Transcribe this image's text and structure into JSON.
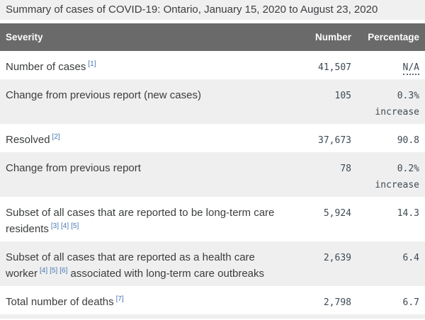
{
  "title": "Summary of cases of COVID-19: Ontario, January 15, 2020 to August 23, 2020",
  "table": {
    "columns": [
      "Severity",
      "Number",
      "Percentage"
    ],
    "rows": [
      {
        "label_segments": [
          {
            "text": "Number of cases"
          },
          {
            "sup": "[1]"
          }
        ],
        "number": "41,507",
        "pct": "N/A",
        "pct_na": true
      },
      {
        "label_segments": [
          {
            "text": "Change from previous report (new cases)"
          }
        ],
        "number": "105",
        "pct": "0.3%",
        "pct_note": "increase"
      },
      {
        "label_segments": [
          {
            "text": "Resolved"
          },
          {
            "sup": "[2]"
          }
        ],
        "number": "37,673",
        "pct": "90.8"
      },
      {
        "label_segments": [
          {
            "text": "Change from previous report"
          }
        ],
        "number": "78",
        "pct": "0.2%",
        "pct_note": "increase"
      },
      {
        "label_segments": [
          {
            "text": "Subset of all cases that are reported to be long-term care residents"
          },
          {
            "sup": "[3]"
          },
          {
            "sup": "[4]"
          },
          {
            "sup": "[5]"
          }
        ],
        "number": "5,924",
        "pct": "14.3"
      },
      {
        "label_segments": [
          {
            "text": "Subset of all cases that are reported as a health care worker"
          },
          {
            "sup": "[4]"
          },
          {
            "sup": "[5]"
          },
          {
            "sup": "[6]"
          },
          {
            "text": " associated with long-term care outbreaks"
          }
        ],
        "number": "2,639",
        "pct": "6.4"
      },
      {
        "label_segments": [
          {
            "text": "Total number of deaths"
          },
          {
            "sup": "[7]"
          }
        ],
        "number": "2,798",
        "pct": "6.7"
      }
    ]
  },
  "chart_data": {
    "type": "table",
    "title": "Summary of cases of COVID-19: Ontario, January 15, 2020 to August 23, 2020",
    "columns": [
      "Severity",
      "Number",
      "Percentage"
    ],
    "rows": [
      [
        "Number of cases [1]",
        "41,507",
        "N/A"
      ],
      [
        "Change from previous report (new cases)",
        "105",
        "0.3% increase"
      ],
      [
        "Resolved [2]",
        "37,673",
        "90.8"
      ],
      [
        "Change from previous report",
        "78",
        "0.2% increase"
      ],
      [
        "Subset of all cases that are reported to be long-term care residents [3] [4] [5]",
        "5,924",
        "14.3"
      ],
      [
        "Subset of all cases that are reported as a health care worker [4] [5] [6] associated with long-term care outbreaks",
        "2,639",
        "6.4"
      ],
      [
        "Total number of deaths [7]",
        "2,798",
        "6.7"
      ]
    ],
    "notes": "Footnote markers [1]-[7] are blue superscript links; N/A has a dotted underline; rows alternate white and light-gray backgrounds"
  },
  "colors": {
    "title_bg": "#f0f0f0",
    "title_text": "#3b3d40",
    "header_bg": "#6a6a6a",
    "header_text": "#fdfdfd",
    "stripe_bg": "#efefef",
    "label_text": "#3a3c3e",
    "number_text": "#3d4a54",
    "footnote_blue": "#4878b4"
  }
}
